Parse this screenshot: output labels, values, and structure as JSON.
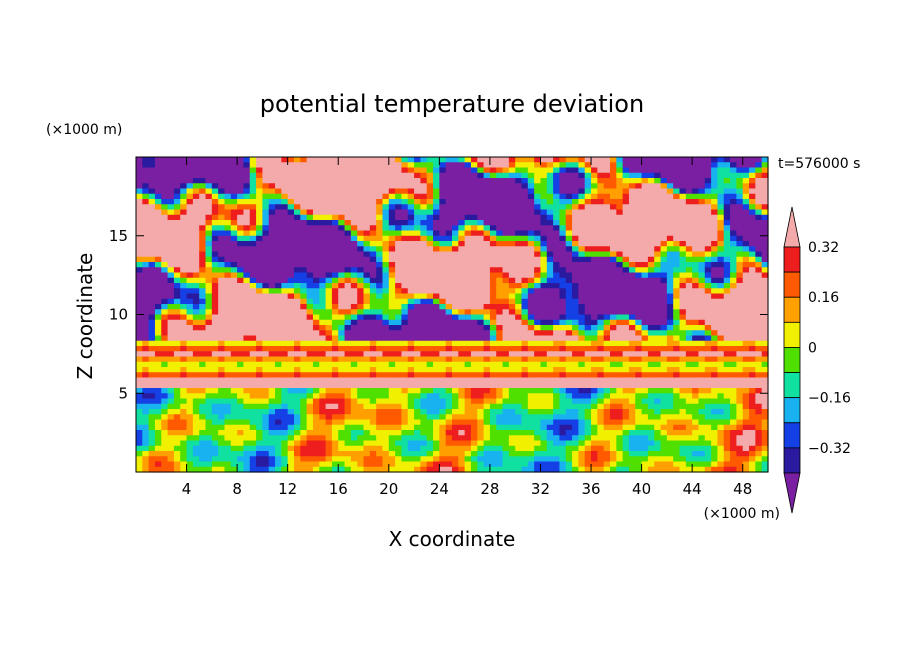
{
  "chart_data": {
    "type": "heatmap",
    "title": "potential temperature deviation",
    "xlabel": "X coordinate",
    "ylabel": "Z coordinate",
    "x_unit": "(×1000 m)",
    "y_unit": "(×1000 m)",
    "time_label": "t=576000 s",
    "xlim": [
      0,
      50
    ],
    "ylim": [
      0,
      20
    ],
    "x_ticks": [
      4,
      8,
      12,
      16,
      20,
      24,
      28,
      32,
      36,
      40,
      44,
      48
    ],
    "y_ticks": [
      5,
      10,
      15
    ],
    "colorbar": {
      "levels": [
        -0.4,
        -0.32,
        -0.24,
        -0.16,
        -0.08,
        0,
        0.08,
        0.16,
        0.24,
        0.32,
        0.4
      ],
      "tick_labels": [
        "0.32",
        "0.16",
        "0",
        "−0.16",
        "−0.32"
      ],
      "tick_values": [
        0.32,
        0.16,
        0,
        -0.16,
        -0.32
      ],
      "colors": [
        "#7b1fa2",
        "#2a1aa0",
        "#1540e6",
        "#19b2f0",
        "#10e0a0",
        "#50e000",
        "#f0f000",
        "#ffa000",
        "#ff5a00",
        "#ee1e1e",
        "#f4aaaa"
      ],
      "extend": "both"
    }
  }
}
